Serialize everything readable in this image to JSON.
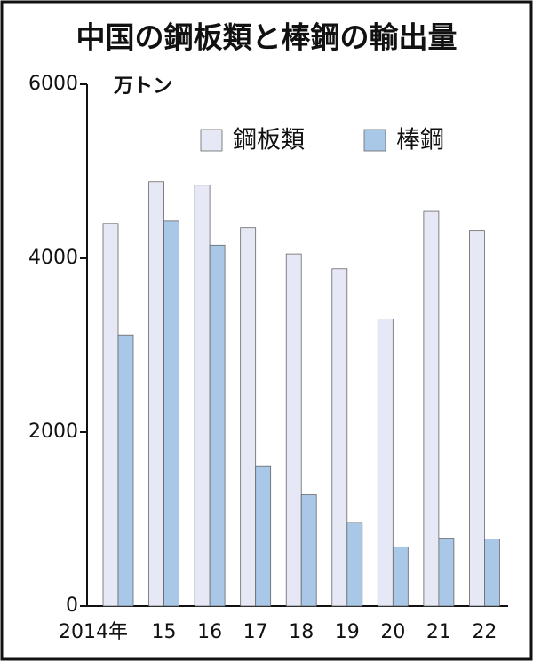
{
  "chart_data": {
    "type": "bar",
    "title": "中国の鋼板類と棒鋼の輸出量",
    "unit": "万トン",
    "categories": [
      "2014年",
      "15",
      "16",
      "17",
      "18",
      "19",
      "20",
      "21",
      "22"
    ],
    "series": [
      {
        "name": "鋼板類",
        "color": "#e6e9f5",
        "values": [
          4400,
          4880,
          4840,
          4350,
          4050,
          3880,
          3300,
          4540,
          4320
        ]
      },
      {
        "name": "棒鋼",
        "color": "#a9c8e8",
        "values": [
          3110,
          4430,
          4150,
          1610,
          1280,
          960,
          680,
          780,
          770
        ]
      }
    ],
    "ylim": [
      0,
      6000
    ],
    "yticks": [
      0,
      2000,
      4000,
      6000
    ],
    "legend": "top-right"
  }
}
